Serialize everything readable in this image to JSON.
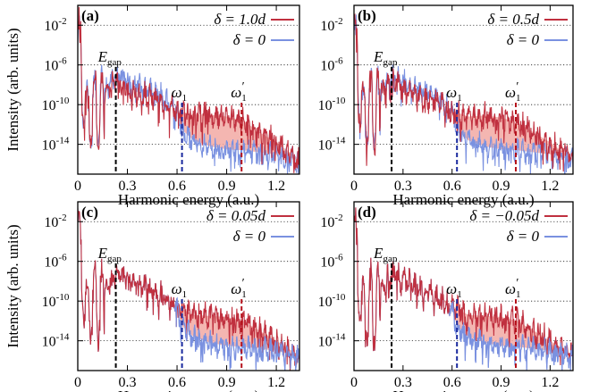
{
  "figure": {
    "shared_xlabel": "Harmonic energy (a.u.)",
    "shared_ylabel": "Intensity (arb. units)"
  },
  "colors": {
    "delta": "#c0303f",
    "zero": "#7a91e0",
    "fill": "#f2a9a3",
    "omega1": "#1a2a9e",
    "omega1p": "#b5121b",
    "egap": "#000000"
  },
  "chart_data": [
    {
      "type": "line",
      "panel_label": "(a)",
      "xlabel": "Harmonic energy (a.u.)",
      "ylabel": "Intensity (arb. units)",
      "xlim": [
        0,
        1.34
      ],
      "ylim_log10": [
        -17,
        0
      ],
      "xticks": [
        "0",
        "0.3",
        "0.6",
        "0.9",
        "1.2"
      ],
      "yticks": [
        "10^-2",
        "10^-6",
        "10^-10",
        "10^-14"
      ],
      "grid": "dotted horizontal at y-ticks",
      "legend": "top-right",
      "series": [
        {
          "name": "δ = 1.0d",
          "style": "line",
          "env": [
            [
              0,
              -1
            ],
            [
              0.05,
              -10
            ],
            [
              0.1,
              -9
            ],
            [
              0.15,
              -9.5
            ],
            [
              0.2,
              -8
            ],
            [
              0.25,
              -7.5
            ],
            [
              0.3,
              -8.6
            ],
            [
              0.4,
              -9
            ],
            [
              0.5,
              -9.6
            ],
            [
              0.6,
              -10.6
            ],
            [
              0.7,
              -11
            ],
            [
              0.8,
              -11
            ],
            [
              0.9,
              -11.2
            ],
            [
              1.0,
              -11.6
            ],
            [
              1.1,
              -12.8
            ],
            [
              1.2,
              -13.8
            ],
            [
              1.34,
              -15.5
            ]
          ]
        },
        {
          "name": "δ = 0",
          "style": "line",
          "env": [
            [
              0,
              -1
            ],
            [
              0.05,
              -10
            ],
            [
              0.1,
              -9
            ],
            [
              0.15,
              -9.2
            ],
            [
              0.2,
              -7.6
            ],
            [
              0.25,
              -7
            ],
            [
              0.3,
              -7.6
            ],
            [
              0.4,
              -8.3
            ],
            [
              0.5,
              -9
            ],
            [
              0.6,
              -10.6
            ],
            [
              0.63,
              -12.5
            ],
            [
              0.7,
              -13.6
            ],
            [
              0.8,
              -14.2
            ],
            [
              0.9,
              -14.5
            ],
            [
              1.0,
              -14.6
            ],
            [
              1.1,
              -14.8
            ],
            [
              1.2,
              -15
            ],
            [
              1.34,
              -15.6
            ]
          ]
        }
      ],
      "markers": [
        {
          "label": "E",
          "sub": "gap",
          "x": 0.23
        },
        {
          "label": "ω",
          "sub": "1",
          "x": 0.63
        },
        {
          "label": "ω",
          "sub": "1",
          "prime": true,
          "x": 0.99
        }
      ]
    },
    {
      "type": "line",
      "panel_label": "(b)",
      "xlabel": "Harmonic energy (a.u.)",
      "ylabel": "",
      "xlim": [
        0,
        1.34
      ],
      "ylim_log10": [
        -17,
        0
      ],
      "xticks": [
        "0",
        "0.3",
        "0.6",
        "0.9",
        "1.2"
      ],
      "yticks": [
        "10^-2",
        "10^-6",
        "10^-10",
        "10^-14"
      ],
      "grid": "dotted horizontal at y-ticks",
      "legend": "top-right",
      "series": [
        {
          "name": "δ = 0.5d",
          "style": "line",
          "env": [
            [
              0,
              -1
            ],
            [
              0.05,
              -10
            ],
            [
              0.1,
              -9
            ],
            [
              0.15,
              -9.3
            ],
            [
              0.2,
              -7.8
            ],
            [
              0.25,
              -7.5
            ],
            [
              0.3,
              -8.3
            ],
            [
              0.4,
              -9
            ],
            [
              0.5,
              -9.6
            ],
            [
              0.6,
              -10.6
            ],
            [
              0.7,
              -11.2
            ],
            [
              0.8,
              -11.1
            ],
            [
              0.9,
              -11.3
            ],
            [
              1.0,
              -11.8
            ],
            [
              1.1,
              -12.8
            ],
            [
              1.2,
              -13.8
            ],
            [
              1.34,
              -15.5
            ]
          ]
        },
        {
          "name": "δ = 0",
          "style": "line",
          "env": [
            [
              0,
              -1
            ],
            [
              0.05,
              -10
            ],
            [
              0.1,
              -9
            ],
            [
              0.15,
              -9.2
            ],
            [
              0.2,
              -7.6
            ],
            [
              0.25,
              -7
            ],
            [
              0.3,
              -7.6
            ],
            [
              0.4,
              -8.3
            ],
            [
              0.5,
              -9
            ],
            [
              0.6,
              -10.6
            ],
            [
              0.63,
              -12.5
            ],
            [
              0.7,
              -13.6
            ],
            [
              0.8,
              -14.2
            ],
            [
              0.9,
              -14.5
            ],
            [
              1.0,
              -14.6
            ],
            [
              1.1,
              -14.8
            ],
            [
              1.2,
              -15
            ],
            [
              1.34,
              -15.6
            ]
          ]
        }
      ],
      "markers": [
        {
          "label": "E",
          "sub": "gap",
          "x": 0.23
        },
        {
          "label": "ω",
          "sub": "1",
          "x": 0.63
        },
        {
          "label": "ω",
          "sub": "1",
          "prime": true,
          "x": 0.99
        }
      ]
    },
    {
      "type": "line",
      "panel_label": "(c)",
      "xlabel": "Harmonic energy (a.u.)",
      "ylabel": "Intensity (arb. units)",
      "xlim": [
        0,
        1.34
      ],
      "ylim_log10": [
        -17,
        0
      ],
      "xticks": [
        "0",
        "0.3",
        "0.6",
        "0.9",
        "1.2"
      ],
      "yticks": [
        "10^-2",
        "10^-6",
        "10^-10",
        "10^-14"
      ],
      "grid": "dotted horizontal at y-ticks",
      "legend": "top-right",
      "series": [
        {
          "name": "δ = 0.05d",
          "style": "line",
          "env": [
            [
              0,
              -1
            ],
            [
              0.05,
              -10
            ],
            [
              0.1,
              -9
            ],
            [
              0.15,
              -9.2
            ],
            [
              0.2,
              -7.8
            ],
            [
              0.25,
              -7.2
            ],
            [
              0.3,
              -7.8
            ],
            [
              0.4,
              -8.5
            ],
            [
              0.5,
              -9.3
            ],
            [
              0.6,
              -10.5
            ],
            [
              0.7,
              -11.4
            ],
            [
              0.8,
              -11.5
            ],
            [
              0.9,
              -11.6
            ],
            [
              1.0,
              -12
            ],
            [
              1.1,
              -13
            ],
            [
              1.2,
              -14
            ],
            [
              1.34,
              -15.5
            ]
          ]
        },
        {
          "name": "δ = 0",
          "style": "line",
          "env": [
            [
              0,
              -1
            ],
            [
              0.05,
              -10
            ],
            [
              0.1,
              -9
            ],
            [
              0.15,
              -9.2
            ],
            [
              0.2,
              -7.8
            ],
            [
              0.25,
              -7.2
            ],
            [
              0.3,
              -7.8
            ],
            [
              0.4,
              -8.5
            ],
            [
              0.5,
              -9.3
            ],
            [
              0.6,
              -10.8
            ],
            [
              0.63,
              -12.5
            ],
            [
              0.7,
              -13.6
            ],
            [
              0.8,
              -14.2
            ],
            [
              0.9,
              -14.5
            ],
            [
              1.0,
              -14.6
            ],
            [
              1.1,
              -14.8
            ],
            [
              1.2,
              -15
            ],
            [
              1.34,
              -15.6
            ]
          ]
        }
      ],
      "markers": [
        {
          "label": "E",
          "sub": "gap",
          "x": 0.23
        },
        {
          "label": "ω",
          "sub": "1",
          "x": 0.63
        },
        {
          "label": "ω",
          "sub": "1",
          "prime": true,
          "x": 0.99
        }
      ]
    },
    {
      "type": "line",
      "panel_label": "(d)",
      "xlabel": "Harmonic energy (a.u.)",
      "ylabel": "",
      "xlim": [
        0,
        1.34
      ],
      "ylim_log10": [
        -17,
        0
      ],
      "xticks": [
        "0",
        "0.3",
        "0.6",
        "0.9",
        "1.2"
      ],
      "yticks": [
        "10^-2",
        "10^-6",
        "10^-10",
        "10^-14"
      ],
      "grid": "dotted horizontal at y-ticks",
      "legend": "top-right",
      "series": [
        {
          "name": "δ = −0.05d",
          "style": "line",
          "env": [
            [
              0,
              -1
            ],
            [
              0.05,
              -10
            ],
            [
              0.1,
              -9
            ],
            [
              0.15,
              -9.2
            ],
            [
              0.2,
              -7.8
            ],
            [
              0.25,
              -7.2
            ],
            [
              0.3,
              -7.8
            ],
            [
              0.4,
              -8.5
            ],
            [
              0.5,
              -9.3
            ],
            [
              0.6,
              -10.5
            ],
            [
              0.7,
              -11.4
            ],
            [
              0.8,
              -11.5
            ],
            [
              0.9,
              -11.6
            ],
            [
              1.0,
              -12
            ],
            [
              1.1,
              -13
            ],
            [
              1.2,
              -14
            ],
            [
              1.34,
              -15.5
            ]
          ]
        },
        {
          "name": "δ = 0",
          "style": "line",
          "env": [
            [
              0,
              -1
            ],
            [
              0.05,
              -10
            ],
            [
              0.1,
              -9
            ],
            [
              0.15,
              -9.2
            ],
            [
              0.2,
              -7.8
            ],
            [
              0.25,
              -7.2
            ],
            [
              0.3,
              -7.8
            ],
            [
              0.4,
              -8.5
            ],
            [
              0.5,
              -9.3
            ],
            [
              0.6,
              -10.8
            ],
            [
              0.63,
              -12.5
            ],
            [
              0.7,
              -13.6
            ],
            [
              0.8,
              -14.2
            ],
            [
              0.9,
              -14.5
            ],
            [
              1.0,
              -14.6
            ],
            [
              1.1,
              -14.8
            ],
            [
              1.2,
              -15
            ],
            [
              1.34,
              -15.6
            ]
          ]
        }
      ],
      "markers": [
        {
          "label": "E",
          "sub": "gap",
          "x": 0.23
        },
        {
          "label": "ω",
          "sub": "1",
          "x": 0.63
        },
        {
          "label": "ω",
          "sub": "1",
          "prime": true,
          "x": 0.99
        }
      ]
    }
  ]
}
